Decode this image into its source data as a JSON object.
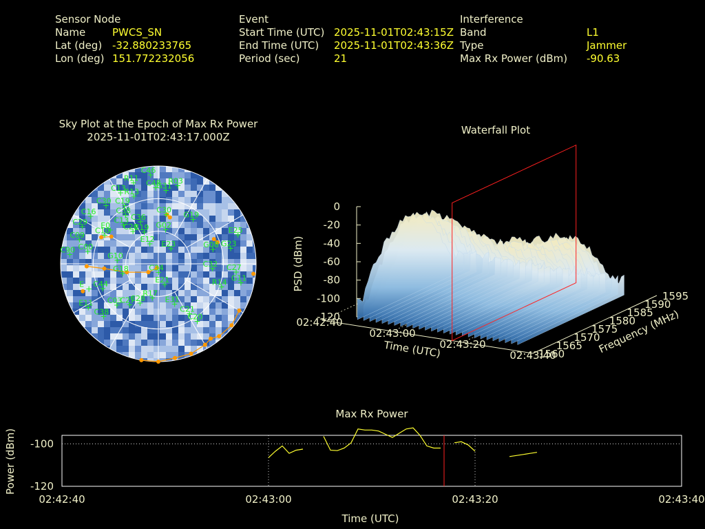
{
  "header": {
    "sensor": {
      "title": "Sensor Node",
      "name_label": "Name",
      "name": "PWCS_SN",
      "lat_label": "Lat (deg)",
      "lat": "-32.880233765",
      "lon_label": "Lon (deg)",
      "lon": "151.772232056"
    },
    "event": {
      "title": "Event",
      "start_label": "Start Time (UTC)",
      "start": "2025-11-01T02:43:15Z",
      "end_label": "End Time (UTC)",
      "end": "2025-11-01T02:43:36Z",
      "period_label": "Period (sec)",
      "period": "21"
    },
    "interference": {
      "title": "Interference",
      "band_label": "Band",
      "band": "L1",
      "type_label": "Type",
      "type": "Jammer",
      "power_label": "Max Rx Power (dBm)",
      "power": "-90.63"
    }
  },
  "colors": {
    "text": "#f0f0c8",
    "value": "#ffff30",
    "satellite": "#22ee22",
    "track": "#ff9900",
    "marker": "#ff2020",
    "power_line": "#ffff30"
  },
  "chart_data": [
    {
      "type": "sky-plot",
      "title": "Sky Plot at the Epoch of Max Rx Power",
      "subtitle": "2025-11-01T02:43:17.000Z",
      "satellites": [
        {
          "id": "C46",
          "az": 355,
          "el": 8
        },
        {
          "id": "C13",
          "az": 332,
          "el": 16
        },
        {
          "id": "R11",
          "az": 343,
          "el": 12
        },
        {
          "id": "C30",
          "az": 318,
          "el": 18
        },
        {
          "id": "C19",
          "az": 330,
          "el": 28
        },
        {
          "id": "R13",
          "az": 340,
          "el": 24
        },
        {
          "id": "C48",
          "az": 358,
          "el": 20
        },
        {
          "id": "G31",
          "az": 6,
          "el": 22
        },
        {
          "id": "R03",
          "az": 14,
          "el": 16
        },
        {
          "id": "C16",
          "az": 305,
          "el": 14
        },
        {
          "id": "C29",
          "az": 296,
          "el": 12
        },
        {
          "id": "C30",
          "az": 9,
          "el": 44
        },
        {
          "id": "C38",
          "az": 326,
          "el": 36
        },
        {
          "id": "C13",
          "az": 318,
          "el": 42
        },
        {
          "id": "C20",
          "az": 322,
          "el": 52
        },
        {
          "id": "C36",
          "az": 337,
          "el": 48
        },
        {
          "id": "C09",
          "az": 287,
          "el": 14
        },
        {
          "id": "E0",
          "az": 305,
          "el": 36
        },
        {
          "id": "C10",
          "az": 298,
          "el": 34
        },
        {
          "id": "E19",
          "az": 336,
          "el": 58
        },
        {
          "id": "G02",
          "az": 12,
          "el": 58
        },
        {
          "id": "E12",
          "az": 337,
          "el": 70
        },
        {
          "id": "E23",
          "az": 40,
          "el": 72
        },
        {
          "id": "G19",
          "az": 38,
          "el": 38
        },
        {
          "id": "E25",
          "az": 70,
          "el": 12
        },
        {
          "id": "G08",
          "az": 75,
          "el": 38
        },
        {
          "id": "G23",
          "az": 78,
          "el": 22
        },
        {
          "id": "C32",
          "az": 95,
          "el": 40
        },
        {
          "id": "C27",
          "az": 96,
          "el": 18
        },
        {
          "id": "C90",
          "az": 276,
          "el": 8
        },
        {
          "id": "C00",
          "az": 280,
          "el": 24
        },
        {
          "id": "G10",
          "az": 275,
          "el": 52
        },
        {
          "id": "G18",
          "az": 255,
          "el": 56
        },
        {
          "id": "C44",
          "az": 246,
          "el": 34
        },
        {
          "id": "E",
          "az": 250,
          "el": 22
        },
        {
          "id": "E11",
          "az": 238,
          "el": 14
        },
        {
          "id": "C38",
          "az": 226,
          "el": 20
        },
        {
          "id": "C03",
          "az": 225,
          "el": 36
        },
        {
          "id": "C28",
          "az": 205,
          "el": 50
        },
        {
          "id": "C27",
          "az": 215,
          "el": 44
        },
        {
          "id": "R17",
          "az": 190,
          "el": 58
        },
        {
          "id": "C34",
          "az": 179,
          "el": 82
        },
        {
          "id": "E31",
          "az": 158,
          "el": 50
        },
        {
          "id": "C21",
          "az": 148,
          "el": 36
        },
        {
          "id": "C20",
          "az": 146,
          "el": 26
        },
        {
          "id": "R14",
          "az": 110,
          "el": 28
        },
        {
          "id": "G11",
          "az": 103,
          "el": 12
        },
        {
          "id": "E21",
          "az": 163,
          "el": 70
        }
      ],
      "tracks": [
        {
          "points": [
            {
              "az": 268,
              "el": 24
            },
            {
              "az": 265,
              "el": 40
            },
            {
              "az": 255,
              "el": 60
            },
            {
              "az": 230,
              "el": 78
            },
            {
              "az": 200,
              "el": 86
            }
          ]
        },
        {
          "points": [
            {
              "az": 300,
              "el": 40
            },
            {
              "az": 295,
              "el": 32
            }
          ]
        },
        {
          "points": [
            {
              "az": 70,
              "el": 32
            },
            {
              "az": 66,
              "el": 34
            }
          ]
        },
        {
          "points": [
            {
              "az": 10,
              "el": 44
            },
            {
              "az": 14,
              "el": 46
            }
          ]
        },
        {
          "points": [
            {
              "az": 120,
              "el": 4
            },
            {
              "az": 130,
              "el": 2
            },
            {
              "az": 140,
              "el": 3
            },
            {
              "az": 145,
              "el": 6
            },
            {
              "az": 150,
              "el": 4
            },
            {
              "az": 160,
              "el": 2
            },
            {
              "az": 170,
              "el": 2
            },
            {
              "az": 180,
              "el": 0
            },
            {
              "az": 190,
              "el": 0
            }
          ]
        },
        {
          "points": [
            {
              "az": 250,
              "el": 16
            }
          ]
        },
        {
          "points": [
            {
              "az": 96,
              "el": 2
            }
          ]
        }
      ]
    },
    {
      "type": "waterfall-3d",
      "title": "Waterfall Plot",
      "zlabel": "PSD (dBm)",
      "xlabel": "Time (UTC)",
      "ylabel": "Frequency (MHz)",
      "z_ticks": [
        "0",
        "-20",
        "-40",
        "-60",
        "-80",
        "-100",
        "-120"
      ],
      "x_ticks": [
        "02:42:40",
        "02:43:00",
        "02:43:20",
        "02:43:40"
      ],
      "y_ticks": [
        "1560",
        "1565",
        "1570",
        "1575",
        "1580",
        "1585",
        "1590",
        "1595"
      ],
      "xlim": [
        "02:42:40",
        "02:43:40"
      ],
      "ylim": [
        1560,
        1595
      ],
      "zlim": [
        -120,
        0
      ],
      "marker_time": "02:43:17"
    },
    {
      "type": "line",
      "title": "Max Rx Power",
      "xlabel": "Time (UTC)",
      "ylabel": "Power (dBm)",
      "x_ticks": [
        "02:42:40",
        "02:43:00",
        "02:43:20",
        "02:43:40"
      ],
      "y_ticks": [
        "-100",
        "-120"
      ],
      "ylim": [
        -120,
        -100
      ],
      "event_start": "02:43:00",
      "event_end": "02:43:20",
      "marker_time": "02:43:17",
      "segments": [
        {
          "x": [
            60,
            62,
            64,
            66,
            68,
            70
          ],
          "y": [
            -106.5,
            -103.5,
            -101,
            -104.5,
            -103,
            -102.5
          ]
        },
        {
          "x": [
            76,
            78,
            80,
            82,
            84,
            86,
            88,
            90,
            92,
            94,
            96,
            98,
            100,
            102,
            104,
            106,
            108,
            110
          ],
          "y": [
            -96.5,
            -103,
            -103.2,
            -102,
            -99.5,
            -93,
            -93.5,
            -93.5,
            -94,
            -95.5,
            -97,
            -95,
            -93,
            -92.5,
            -96,
            -101,
            -102,
            -102
          ]
        },
        {
          "x": [
            114,
            116,
            118,
            120
          ],
          "y": [
            -99.5,
            -99,
            -100.5,
            -103.5
          ]
        },
        {
          "x": [
            130,
            132,
            134,
            136,
            138
          ],
          "y": [
            -106,
            -105.5,
            -105,
            -104.5,
            -104
          ]
        }
      ]
    }
  ]
}
